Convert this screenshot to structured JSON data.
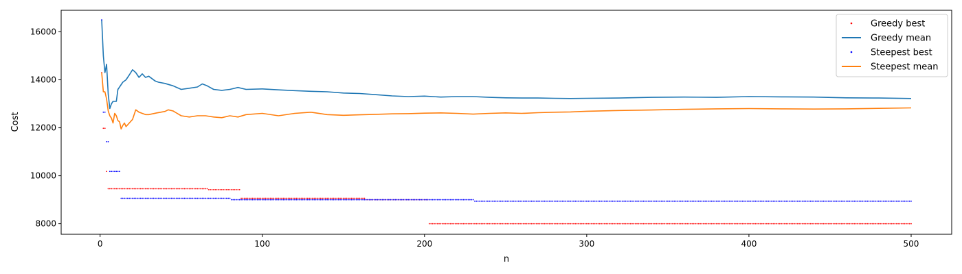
{
  "chart_data": {
    "type": "line",
    "xlabel": "n",
    "ylabel": "Cost",
    "xlim": [
      -24,
      525
    ],
    "ylim": [
      7560,
      16900
    ],
    "xticks": [
      0,
      100,
      200,
      300,
      400,
      500
    ],
    "yticks": [
      8000,
      10000,
      12000,
      14000,
      16000
    ],
    "xtick_labels": [
      "0",
      "100",
      "200",
      "300",
      "400",
      "500"
    ],
    "ytick_labels": [
      "8000",
      "10000",
      "12000",
      "14000",
      "16000"
    ],
    "grid": false,
    "legend_position": "top-right",
    "series": [
      {
        "name": "Greedy best",
        "style": "points",
        "color": "#ff0000",
        "segments": [
          {
            "from": 1,
            "to": 1,
            "value": 14300
          },
          {
            "from": 2,
            "to": 3,
            "value": 11980
          },
          {
            "from": 4,
            "to": 4,
            "value": 10180
          },
          {
            "from": 5,
            "to": 66,
            "value": 9460
          },
          {
            "from": 67,
            "to": 86,
            "value": 9420
          },
          {
            "from": 87,
            "to": 163,
            "value": 9060
          },
          {
            "from": 164,
            "to": 202,
            "value": 9000
          },
          {
            "from": 203,
            "to": 500,
            "value": 8000
          }
        ]
      },
      {
        "name": "Greedy mean",
        "style": "line",
        "color": "#1f77b4",
        "points": [
          [
            1,
            16500
          ],
          [
            2,
            15000
          ],
          [
            3,
            14300
          ],
          [
            4,
            14650
          ],
          [
            5,
            13400
          ],
          [
            6,
            12800
          ],
          [
            7,
            13000
          ],
          [
            8,
            13100
          ],
          [
            9,
            13100
          ],
          [
            10,
            13100
          ],
          [
            11,
            13600
          ],
          [
            12,
            13700
          ],
          [
            14,
            13900
          ],
          [
            16,
            14000
          ],
          [
            18,
            14200
          ],
          [
            20,
            14420
          ],
          [
            22,
            14300
          ],
          [
            24,
            14100
          ],
          [
            26,
            14250
          ],
          [
            28,
            14100
          ],
          [
            30,
            14150
          ],
          [
            32,
            14050
          ],
          [
            34,
            13950
          ],
          [
            36,
            13900
          ],
          [
            40,
            13850
          ],
          [
            45,
            13750
          ],
          [
            50,
            13600
          ],
          [
            55,
            13650
          ],
          [
            60,
            13700
          ],
          [
            63,
            13830
          ],
          [
            66,
            13750
          ],
          [
            70,
            13600
          ],
          [
            75,
            13560
          ],
          [
            80,
            13600
          ],
          [
            85,
            13680
          ],
          [
            90,
            13600
          ],
          [
            100,
            13620
          ],
          [
            110,
            13580
          ],
          [
            120,
            13550
          ],
          [
            130,
            13520
          ],
          [
            140,
            13500
          ],
          [
            150,
            13450
          ],
          [
            160,
            13430
          ],
          [
            170,
            13380
          ],
          [
            180,
            13330
          ],
          [
            190,
            13300
          ],
          [
            200,
            13320
          ],
          [
            210,
            13280
          ],
          [
            220,
            13300
          ],
          [
            230,
            13300
          ],
          [
            240,
            13270
          ],
          [
            250,
            13250
          ],
          [
            260,
            13240
          ],
          [
            270,
            13240
          ],
          [
            280,
            13230
          ],
          [
            290,
            13220
          ],
          [
            300,
            13230
          ],
          [
            320,
            13240
          ],
          [
            340,
            13270
          ],
          [
            360,
            13280
          ],
          [
            380,
            13270
          ],
          [
            400,
            13300
          ],
          [
            420,
            13290
          ],
          [
            440,
            13280
          ],
          [
            460,
            13250
          ],
          [
            480,
            13240
          ],
          [
            500,
            13220
          ]
        ]
      },
      {
        "name": "Steepest best",
        "style": "points",
        "color": "#0000ff",
        "segments": [
          {
            "from": 1,
            "to": 1,
            "value": 16500
          },
          {
            "from": 2,
            "to": 3,
            "value": 12650
          },
          {
            "from": 4,
            "to": 5,
            "value": 11420
          },
          {
            "from": 6,
            "to": 12,
            "value": 10180
          },
          {
            "from": 13,
            "to": 80,
            "value": 9060
          },
          {
            "from": 81,
            "to": 230,
            "value": 9000
          },
          {
            "from": 231,
            "to": 500,
            "value": 8940
          }
        ]
      },
      {
        "name": "Steepest mean",
        "style": "line",
        "color": "#ff7f0e",
        "points": [
          [
            1,
            14300
          ],
          [
            2,
            13500
          ],
          [
            3,
            13500
          ],
          [
            4,
            13200
          ],
          [
            5,
            12700
          ],
          [
            6,
            12500
          ],
          [
            7,
            12400
          ],
          [
            8,
            12200
          ],
          [
            9,
            12600
          ],
          [
            10,
            12500
          ],
          [
            11,
            12300
          ],
          [
            12,
            12250
          ],
          [
            13,
            11950
          ],
          [
            14,
            12100
          ],
          [
            15,
            12200
          ],
          [
            16,
            12050
          ],
          [
            18,
            12200
          ],
          [
            20,
            12350
          ],
          [
            22,
            12750
          ],
          [
            24,
            12650
          ],
          [
            26,
            12600
          ],
          [
            28,
            12550
          ],
          [
            30,
            12550
          ],
          [
            35,
            12620
          ],
          [
            40,
            12680
          ],
          [
            42,
            12750
          ],
          [
            45,
            12700
          ],
          [
            50,
            12500
          ],
          [
            55,
            12450
          ],
          [
            60,
            12500
          ],
          [
            65,
            12500
          ],
          [
            70,
            12450
          ],
          [
            75,
            12420
          ],
          [
            80,
            12500
          ],
          [
            85,
            12450
          ],
          [
            90,
            12550
          ],
          [
            100,
            12600
          ],
          [
            110,
            12500
          ],
          [
            120,
            12600
          ],
          [
            130,
            12650
          ],
          [
            140,
            12550
          ],
          [
            150,
            12520
          ],
          [
            160,
            12540
          ],
          [
            170,
            12560
          ],
          [
            180,
            12580
          ],
          [
            190,
            12590
          ],
          [
            200,
            12610
          ],
          [
            210,
            12620
          ],
          [
            220,
            12600
          ],
          [
            230,
            12570
          ],
          [
            240,
            12600
          ],
          [
            250,
            12620
          ],
          [
            260,
            12600
          ],
          [
            270,
            12630
          ],
          [
            280,
            12650
          ],
          [
            290,
            12660
          ],
          [
            300,
            12690
          ],
          [
            320,
            12720
          ],
          [
            340,
            12740
          ],
          [
            360,
            12770
          ],
          [
            380,
            12790
          ],
          [
            400,
            12800
          ],
          [
            420,
            12790
          ],
          [
            440,
            12780
          ],
          [
            460,
            12790
          ],
          [
            480,
            12810
          ],
          [
            500,
            12830
          ]
        ]
      }
    ]
  }
}
